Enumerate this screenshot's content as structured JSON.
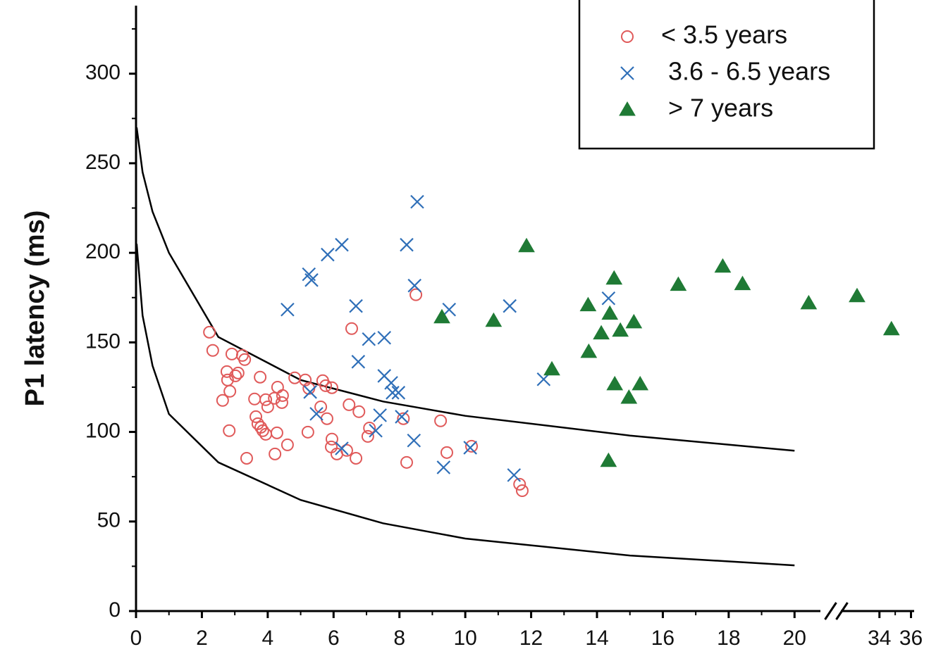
{
  "chart_data": {
    "type": "scatter",
    "ylabel": "P1 latency (ms)",
    "xlim": [
      0,
      36.2
    ],
    "xbreak": [
      21,
      32
    ],
    "ylim": [
      0,
      338
    ],
    "xticks": [
      0,
      2,
      4,
      6,
      8,
      10,
      12,
      14,
      16,
      18,
      20,
      34,
      36
    ],
    "xminorticks": [
      1,
      3,
      5,
      7,
      9,
      11,
      13,
      15,
      17,
      19,
      35
    ],
    "yticks": [
      0,
      50,
      100,
      150,
      200,
      250,
      300
    ],
    "yminorticks": [
      25,
      75,
      125,
      175,
      225,
      275,
      325
    ],
    "grid": false,
    "legend": "upper right",
    "series": [
      {
        "name": "< 3.5 years",
        "color": "#e05a5a",
        "marker": "circle",
        "x": [
          2.23,
          2.33,
          2.91,
          3.23,
          3.3,
          2.76,
          3.1,
          3.02,
          2.78,
          3.77,
          2.63,
          2.85,
          2.83,
          3.36,
          3.6,
          3.64,
          3.7,
          3.79,
          3.94,
          4.0,
          4.2,
          4.3,
          4.43,
          4.45,
          3.85,
          3.94,
          4.28,
          4.22,
          4.6,
          4.82,
          5.14,
          5.25,
          5.22,
          5.67,
          5.76,
          5.95,
          5.61,
          5.8,
          5.95,
          5.93,
          6.1,
          6.4,
          6.68,
          6.55,
          6.47,
          6.77,
          7.09,
          7.04,
          8.12,
          8.5,
          8.22,
          9.25,
          9.44,
          10.19,
          11.65,
          11.73
        ],
        "values": [
          155.7,
          145.5,
          143.5,
          142.7,
          140.4,
          133.7,
          132.9,
          131.3,
          129,
          130.6,
          117.6,
          122.7,
          100.7,
          85.3,
          118.4,
          108.5,
          104.6,
          102.6,
          118,
          114,
          118.8,
          125,
          116.4,
          120.3,
          100.7,
          98.7,
          99.5,
          87.7,
          92.8,
          130.2,
          129,
          124.3,
          99.9,
          128.6,
          125.8,
          124.7,
          114,
          107.4,
          96,
          91.6,
          87.7,
          89.7,
          85.3,
          157.7,
          115.2,
          111.3,
          102.2,
          97.5,
          107.4,
          176.6,
          83,
          106.2,
          88.5,
          92,
          70.8,
          67.2
        ]
      },
      {
        "name": " 3.6 - 6.5 years",
        "color": "#2f6fb8",
        "marker": "x",
        "x": [
          4.6,
          5.25,
          5.33,
          5.82,
          6.25,
          6.68,
          8.54,
          8.22,
          8.46,
          9.51,
          11.35,
          14.35,
          7.07,
          7.54,
          6.75,
          7.54,
          7.75,
          5.29,
          5.48,
          7.79,
          7.97,
          8.07,
          7.41,
          7.28,
          6.25,
          8.44,
          9.34,
          10.15,
          11.48,
          12.38
        ],
        "values": [
          168.3,
          188,
          184.8,
          199,
          204.5,
          170.3,
          228.5,
          204.5,
          181.7,
          168.3,
          170.3,
          174.6,
          151.8,
          152.6,
          139.2,
          131.3,
          127.4,
          122.3,
          110.1,
          121.9,
          121.9,
          108.5,
          109.3,
          100.7,
          90.8,
          95.2,
          80.2,
          91.2,
          75.9,
          129.4
        ]
      },
      {
        "name": " > 7 years",
        "color": "#1f7a35",
        "marker": "triangle",
        "x": [
          11.86,
          14.52,
          17.82,
          18.42,
          16.47,
          20.43,
          32.58,
          34.76,
          9.29,
          10.86,
          13.73,
          14.39,
          15.12,
          14.13,
          14.71,
          12.63,
          13.75,
          14.54,
          15.31,
          14.97,
          14.35
        ],
        "values": [
          203.7,
          185.6,
          192.3,
          182.5,
          182.1,
          171.8,
          175.8,
          157.3,
          164,
          162,
          170.7,
          166,
          161.2,
          155,
          156.5,
          134.9,
          144.7,
          126.6,
          126.6,
          119.1,
          83.8
        ]
      }
    ],
    "curves": [
      {
        "color": "#000000",
        "x": [
          0.02,
          0.2,
          0.5,
          1,
          2.5,
          5,
          7.5,
          10,
          15,
          20
        ],
        "values": [
          270,
          245,
          223,
          200,
          153,
          129,
          117,
          109,
          98,
          89.5
        ]
      },
      {
        "color": "#000000",
        "x": [
          0.02,
          0.2,
          0.5,
          1,
          2.5,
          5,
          7.5,
          10,
          15,
          20
        ],
        "values": [
          205,
          165,
          137,
          110,
          83,
          62,
          49,
          40.5,
          31,
          25.5
        ]
      }
    ]
  }
}
